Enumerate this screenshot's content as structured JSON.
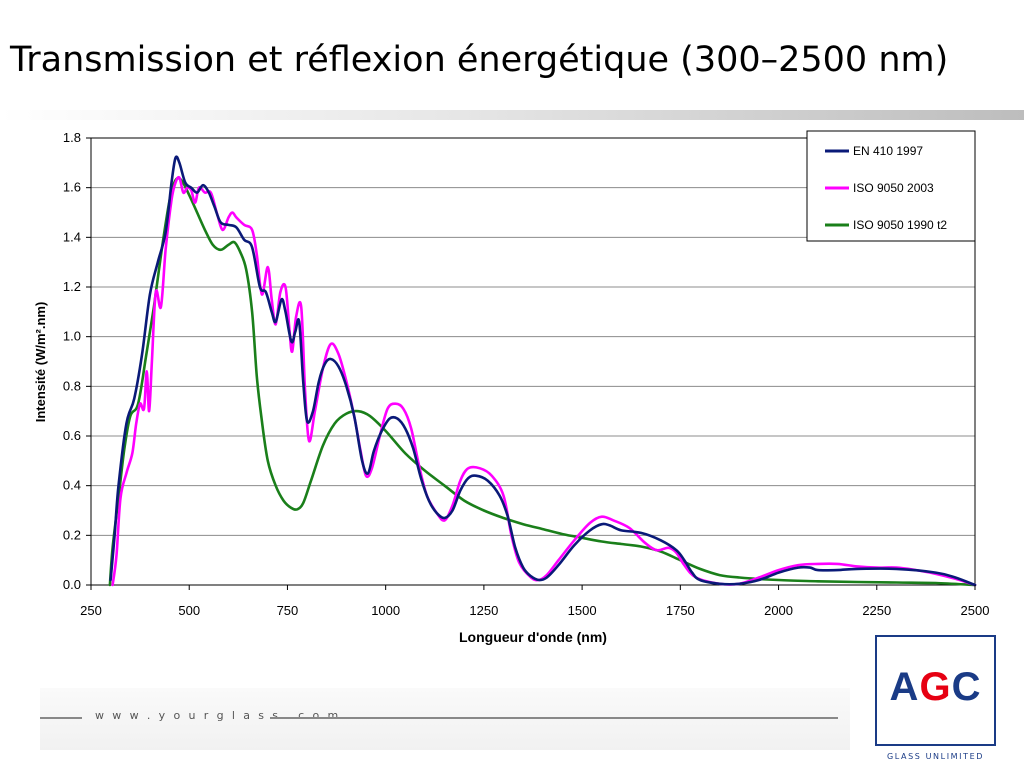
{
  "slide": {
    "title": "Transmission et réflexion énergétique (300–2500 nm)",
    "footer_url": "w w w . y o u r g l a s s . c o m",
    "logo": {
      "mark_prefix": "A",
      "mark_g": "G",
      "mark_suffix": "C",
      "tagline": "GLASS UNLIMITED",
      "colors": {
        "blue": "#1a3b86",
        "red": "#e60012"
      }
    }
  },
  "chart_data": {
    "type": "line",
    "title": "",
    "xlabel": "Longueur d'onde (nm)",
    "ylabel": "Intensité (W/m².nm)",
    "xlim": [
      250,
      2500
    ],
    "ylim": [
      0,
      1.8
    ],
    "xticks": [
      250,
      500,
      750,
      1000,
      1250,
      1500,
      1750,
      2000,
      2250,
      2500
    ],
    "yticks": [
      0,
      0.2,
      0.4,
      0.6,
      0.8,
      1.0,
      1.2,
      1.4,
      1.6,
      1.8
    ],
    "ytick_labels": [
      "0.0",
      "0.2",
      "0.4",
      "0.6",
      "0.8",
      "1.0",
      "1.2",
      "1.4",
      "1.6",
      "1.8"
    ],
    "grid": "horizontal",
    "legend_position": "top-right",
    "series": [
      {
        "name": "EN 410 1997",
        "color": "#0a1a78",
        "points": [
          [
            300,
            0.02
          ],
          [
            310,
            0.2
          ],
          [
            320,
            0.4
          ],
          [
            340,
            0.65
          ],
          [
            360,
            0.75
          ],
          [
            380,
            0.93
          ],
          [
            400,
            1.17
          ],
          [
            420,
            1.3
          ],
          [
            440,
            1.42
          ],
          [
            455,
            1.62
          ],
          [
            465,
            1.72
          ],
          [
            475,
            1.7
          ],
          [
            490,
            1.62
          ],
          [
            505,
            1.6
          ],
          [
            520,
            1.58
          ],
          [
            535,
            1.61
          ],
          [
            550,
            1.58
          ],
          [
            565,
            1.52
          ],
          [
            580,
            1.46
          ],
          [
            600,
            1.45
          ],
          [
            620,
            1.44
          ],
          [
            640,
            1.39
          ],
          [
            660,
            1.36
          ],
          [
            680,
            1.2
          ],
          [
            695,
            1.18
          ],
          [
            710,
            1.1
          ],
          [
            720,
            1.06
          ],
          [
            735,
            1.15
          ],
          [
            745,
            1.1
          ],
          [
            760,
            0.98
          ],
          [
            770,
            1.02
          ],
          [
            780,
            1.06
          ],
          [
            790,
            0.82
          ],
          [
            800,
            0.66
          ],
          [
            815,
            0.7
          ],
          [
            830,
            0.82
          ],
          [
            845,
            0.89
          ],
          [
            860,
            0.91
          ],
          [
            880,
            0.88
          ],
          [
            900,
            0.8
          ],
          [
            920,
            0.68
          ],
          [
            940,
            0.5
          ],
          [
            955,
            0.45
          ],
          [
            970,
            0.54
          ],
          [
            990,
            0.62
          ],
          [
            1010,
            0.67
          ],
          [
            1030,
            0.67
          ],
          [
            1050,
            0.63
          ],
          [
            1070,
            0.55
          ],
          [
            1090,
            0.43
          ],
          [
            1110,
            0.34
          ],
          [
            1130,
            0.29
          ],
          [
            1150,
            0.27
          ],
          [
            1170,
            0.3
          ],
          [
            1190,
            0.38
          ],
          [
            1210,
            0.43
          ],
          [
            1230,
            0.44
          ],
          [
            1260,
            0.42
          ],
          [
            1290,
            0.36
          ],
          [
            1310,
            0.28
          ],
          [
            1330,
            0.15
          ],
          [
            1350,
            0.07
          ],
          [
            1370,
            0.035
          ],
          [
            1390,
            0.02
          ],
          [
            1410,
            0.03
          ],
          [
            1440,
            0.08
          ],
          [
            1480,
            0.16
          ],
          [
            1520,
            0.22
          ],
          [
            1550,
            0.245
          ],
          [
            1570,
            0.24
          ],
          [
            1600,
            0.22
          ],
          [
            1650,
            0.21
          ],
          [
            1700,
            0.18
          ],
          [
            1740,
            0.14
          ],
          [
            1760,
            0.1
          ],
          [
            1780,
            0.05
          ],
          [
            1800,
            0.02
          ],
          [
            1850,
            0.005
          ],
          [
            1900,
            0.005
          ],
          [
            1950,
            0.02
          ],
          [
            2000,
            0.05
          ],
          [
            2050,
            0.07
          ],
          [
            2080,
            0.07
          ],
          [
            2100,
            0.06
          ],
          [
            2150,
            0.06
          ],
          [
            2200,
            0.065
          ],
          [
            2300,
            0.065
          ],
          [
            2400,
            0.05
          ],
          [
            2450,
            0.03
          ],
          [
            2500,
            0.0
          ]
        ]
      },
      {
        "name": "ISO 9050 2003",
        "color": "#ff00ff",
        "points": [
          [
            305,
            0.0
          ],
          [
            315,
            0.12
          ],
          [
            325,
            0.35
          ],
          [
            340,
            0.45
          ],
          [
            355,
            0.53
          ],
          [
            365,
            0.65
          ],
          [
            375,
            0.73
          ],
          [
            385,
            0.71
          ],
          [
            392,
            0.86
          ],
          [
            398,
            0.7
          ],
          [
            405,
            0.9
          ],
          [
            415,
            1.18
          ],
          [
            428,
            1.12
          ],
          [
            440,
            1.35
          ],
          [
            455,
            1.55
          ],
          [
            465,
            1.62
          ],
          [
            475,
            1.64
          ],
          [
            485,
            1.58
          ],
          [
            495,
            1.6
          ],
          [
            505,
            1.59
          ],
          [
            515,
            1.54
          ],
          [
            525,
            1.6
          ],
          [
            540,
            1.58
          ],
          [
            555,
            1.58
          ],
          [
            570,
            1.5
          ],
          [
            585,
            1.43
          ],
          [
            600,
            1.48
          ],
          [
            610,
            1.5
          ],
          [
            620,
            1.48
          ],
          [
            640,
            1.45
          ],
          [
            660,
            1.43
          ],
          [
            672,
            1.33
          ],
          [
            685,
            1.17
          ],
          [
            700,
            1.28
          ],
          [
            710,
            1.15
          ],
          [
            720,
            1.05
          ],
          [
            732,
            1.18
          ],
          [
            745,
            1.2
          ],
          [
            755,
            1.03
          ],
          [
            762,
            0.94
          ],
          [
            772,
            1.08
          ],
          [
            785,
            1.12
          ],
          [
            795,
            0.78
          ],
          [
            805,
            0.58
          ],
          [
            820,
            0.7
          ],
          [
            840,
            0.87
          ],
          [
            860,
            0.97
          ],
          [
            880,
            0.93
          ],
          [
            900,
            0.82
          ],
          [
            920,
            0.68
          ],
          [
            935,
            0.55
          ],
          [
            950,
            0.44
          ],
          [
            965,
            0.47
          ],
          [
            985,
            0.6
          ],
          [
            1005,
            0.71
          ],
          [
            1025,
            0.73
          ],
          [
            1045,
            0.71
          ],
          [
            1065,
            0.63
          ],
          [
            1085,
            0.48
          ],
          [
            1105,
            0.36
          ],
          [
            1130,
            0.29
          ],
          [
            1150,
            0.26
          ],
          [
            1170,
            0.32
          ],
          [
            1190,
            0.42
          ],
          [
            1210,
            0.47
          ],
          [
            1240,
            0.47
          ],
          [
            1270,
            0.44
          ],
          [
            1300,
            0.36
          ],
          [
            1320,
            0.2
          ],
          [
            1340,
            0.09
          ],
          [
            1370,
            0.03
          ],
          [
            1390,
            0.02
          ],
          [
            1410,
            0.04
          ],
          [
            1440,
            0.1
          ],
          [
            1480,
            0.18
          ],
          [
            1520,
            0.25
          ],
          [
            1550,
            0.275
          ],
          [
            1580,
            0.26
          ],
          [
            1620,
            0.23
          ],
          [
            1660,
            0.17
          ],
          [
            1690,
            0.14
          ],
          [
            1720,
            0.15
          ],
          [
            1740,
            0.13
          ],
          [
            1760,
            0.08
          ],
          [
            1790,
            0.03
          ],
          [
            1850,
            0.005
          ],
          [
            1900,
            0.005
          ],
          [
            1950,
            0.03
          ],
          [
            2000,
            0.06
          ],
          [
            2050,
            0.08
          ],
          [
            2100,
            0.085
          ],
          [
            2150,
            0.085
          ],
          [
            2200,
            0.075
          ],
          [
            2250,
            0.07
          ],
          [
            2300,
            0.07
          ],
          [
            2350,
            0.06
          ],
          [
            2400,
            0.045
          ],
          [
            2450,
            0.025
          ],
          [
            2500,
            0.0
          ]
        ]
      },
      {
        "name": "ISO 9050 1990 t2",
        "color": "#1a7f1a",
        "points": [
          [
            298,
            0.0
          ],
          [
            305,
            0.15
          ],
          [
            320,
            0.35
          ],
          [
            335,
            0.55
          ],
          [
            350,
            0.68
          ],
          [
            370,
            0.73
          ],
          [
            390,
            0.92
          ],
          [
            410,
            1.12
          ],
          [
            430,
            1.35
          ],
          [
            450,
            1.55
          ],
          [
            465,
            1.63
          ],
          [
            480,
            1.63
          ],
          [
            500,
            1.57
          ],
          [
            520,
            1.5
          ],
          [
            540,
            1.43
          ],
          [
            560,
            1.37
          ],
          [
            580,
            1.35
          ],
          [
            600,
            1.37
          ],
          [
            615,
            1.38
          ],
          [
            630,
            1.34
          ],
          [
            645,
            1.27
          ],
          [
            660,
            1.1
          ],
          [
            672,
            0.84
          ],
          [
            685,
            0.66
          ],
          [
            700,
            0.5
          ],
          [
            720,
            0.4
          ],
          [
            740,
            0.34
          ],
          [
            760,
            0.31
          ],
          [
            775,
            0.305
          ],
          [
            790,
            0.33
          ],
          [
            810,
            0.42
          ],
          [
            840,
            0.56
          ],
          [
            870,
            0.65
          ],
          [
            900,
            0.69
          ],
          [
            930,
            0.7
          ],
          [
            960,
            0.68
          ],
          [
            1000,
            0.62
          ],
          [
            1050,
            0.53
          ],
          [
            1100,
            0.46
          ],
          [
            1150,
            0.4
          ],
          [
            1200,
            0.34
          ],
          [
            1250,
            0.3
          ],
          [
            1300,
            0.27
          ],
          [
            1350,
            0.245
          ],
          [
            1400,
            0.225
          ],
          [
            1450,
            0.205
          ],
          [
            1500,
            0.19
          ],
          [
            1550,
            0.175
          ],
          [
            1600,
            0.165
          ],
          [
            1650,
            0.155
          ],
          [
            1700,
            0.135
          ],
          [
            1750,
            0.1
          ],
          [
            1800,
            0.065
          ],
          [
            1850,
            0.04
          ],
          [
            1900,
            0.03
          ],
          [
            2000,
            0.02
          ],
          [
            2100,
            0.015
          ],
          [
            2200,
            0.012
          ],
          [
            2300,
            0.01
          ],
          [
            2400,
            0.008
          ],
          [
            2500,
            0.0
          ]
        ]
      }
    ]
  }
}
